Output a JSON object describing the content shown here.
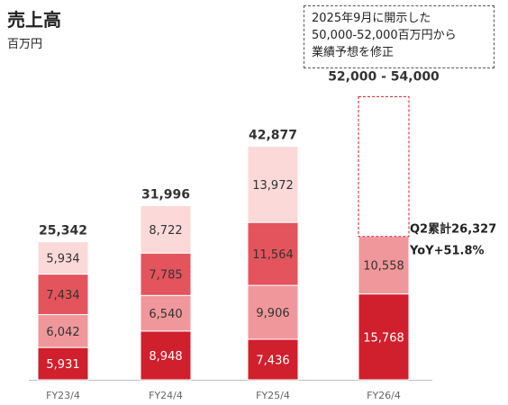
{
  "header": {
    "title": "売上高",
    "unit": "百万円"
  },
  "note": {
    "lines": [
      "2025年9月に開示した",
      "50,000-52,000百万円から",
      "業績予想を修正"
    ]
  },
  "chart_data": {
    "type": "bar",
    "stacked": true,
    "categories": [
      "FY23/4",
      "FY24/4",
      "FY25/4",
      "FY26/4"
    ],
    "series": [
      {
        "values": [
          5931,
          8948,
          7436,
          15768
        ],
        "color": "#d01f2d"
      },
      {
        "values": [
          6042,
          6540,
          9906,
          10558
        ],
        "color": "#f0979b"
      },
      {
        "values": [
          7434,
          7785,
          11564,
          null
        ],
        "color": "#e4545c"
      },
      {
        "values": [
          5934,
          8722,
          13972,
          null
        ],
        "color": "#fbd9d9"
      }
    ],
    "segment_labels": [
      [
        "5,931",
        "6,042",
        "7,434",
        "5,934"
      ],
      [
        "8,948",
        "6,540",
        "7,785",
        "8,722"
      ],
      [
        "7,436",
        "9,906",
        "11,564",
        "13,972"
      ],
      [
        "15,768",
        "10,558"
      ]
    ],
    "totals": [
      25342,
      31996,
      42877,
      null
    ],
    "total_labels": [
      "25,342",
      "31,996",
      "42,877",
      "52,000 - 54,000"
    ],
    "forecast": {
      "category": "FY26/4",
      "range": [
        52000,
        54000
      ]
    },
    "side_annotation": [
      "Q2累計26,327",
      "YoY+51.8%"
    ],
    "colors": {
      "first_segment_text": "#ffffff",
      "other_segment_text": "#333333",
      "forecast_border": "#d01f2d"
    },
    "ylim": [
      0,
      60000
    ],
    "grid": false,
    "legend": "none"
  }
}
